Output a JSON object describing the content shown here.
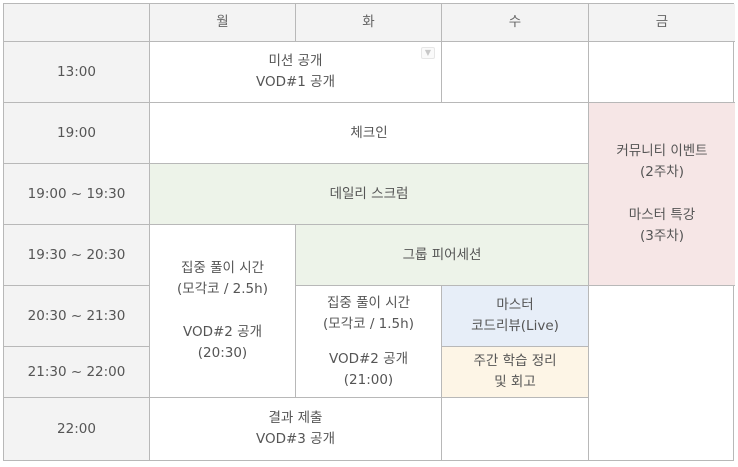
{
  "headers": {
    "corner": "",
    "mon": "월",
    "tue": "화",
    "wed": "수",
    "fri": "금"
  },
  "times": [
    "13:00",
    "19:00",
    "19:00 ~ 19:30",
    "19:30 ~ 20:30",
    "20:30 ~ 21:30",
    "21:30 ~ 22:00",
    "22:00"
  ],
  "events": {
    "mission_release": {
      "line1": "미션 공개",
      "line2": "VOD#1 공개"
    },
    "checkin": "체크인",
    "daily_scrum": "데일리 스크럼",
    "group_peer_session": "그룹 피어세션",
    "focus_mon": {
      "line1": "집중 풀이 시간",
      "line2": "(모각코 / 2.5h)",
      "line3": "VOD#2 공개",
      "line4": "(20:30)"
    },
    "focus_tue": {
      "line1": "집중 풀이 시간",
      "line2": "(모각코 / 1.5h)",
      "line3": "VOD#2 공개",
      "line4": "(21:00)"
    },
    "master_code_review": {
      "line1": "마스터",
      "line2": "코드리뷰(Live)"
    },
    "weekly_review": {
      "line1": "주간 학습 정리",
      "line2": "및 회고"
    },
    "community_event": {
      "line1": "커뮤니티 이벤트",
      "line2": "(2주차)",
      "line3": "마스터 특강",
      "line4": "(3주차)"
    },
    "result_submit": {
      "line1": "결과 제출",
      "line2": "VOD#3 공개"
    }
  },
  "dropdown_icon": "chevron-down-icon",
  "colors": {
    "header_bg": "#f3f3f3",
    "green": "#edf3e9",
    "pink": "#f6e6e6",
    "blue": "#e7eef8",
    "cream": "#fdf5e6",
    "border": "#b8b8b8"
  }
}
